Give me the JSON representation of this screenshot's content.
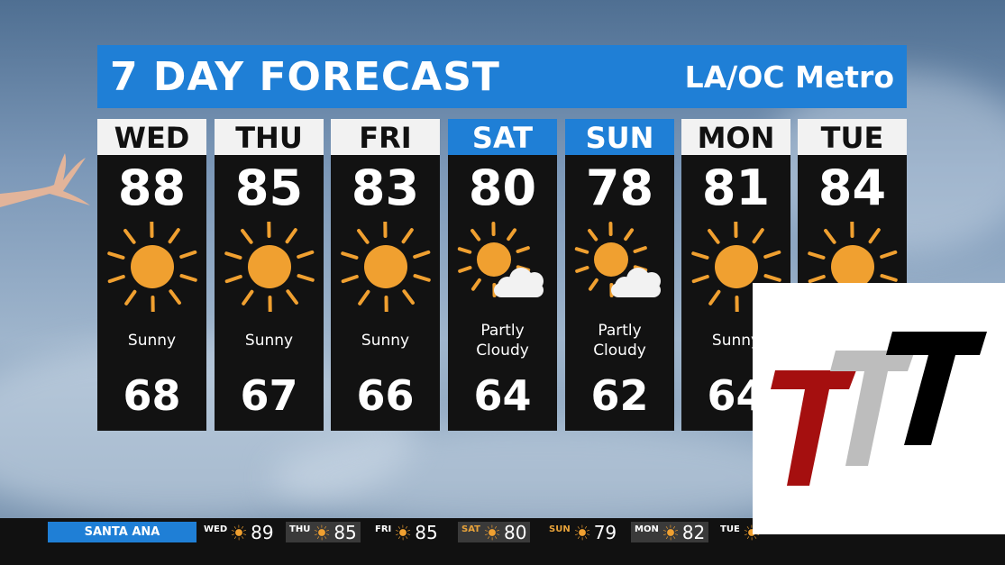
{
  "header": {
    "title": "7 DAY FORECAST",
    "region": "LA/OC Metro"
  },
  "days": [
    {
      "day": "WED",
      "high": "88",
      "low": "68",
      "condition": "Sunny",
      "icon": "sun-icon",
      "weekend": false
    },
    {
      "day": "THU",
      "high": "85",
      "low": "67",
      "condition": "Sunny",
      "icon": "sun-icon",
      "weekend": false
    },
    {
      "day": "FRI",
      "high": "83",
      "low": "66",
      "condition": "Sunny",
      "icon": "sun-icon",
      "weekend": false
    },
    {
      "day": "SAT",
      "high": "80",
      "low": "64",
      "condition": "Partly Cloudy",
      "icon": "partly-cloudy-icon",
      "weekend": true
    },
    {
      "day": "SUN",
      "high": "78",
      "low": "62",
      "condition": "Partly Cloudy",
      "icon": "partly-cloudy-icon",
      "weekend": true
    },
    {
      "day": "MON",
      "high": "81",
      "low": "64",
      "condition": "Sunny",
      "icon": "sun-icon",
      "weekend": false
    },
    {
      "day": "TUE",
      "high": "84",
      "low": "",
      "condition": "",
      "icon": "sun-icon",
      "weekend": false
    }
  ],
  "ticker": {
    "location": "SANTA ANA",
    "items": [
      {
        "day": "WED",
        "temp": "89"
      },
      {
        "day": "THU",
        "temp": "85"
      },
      {
        "day": "FRI",
        "temp": "85"
      },
      {
        "day": "SAT",
        "temp": "80"
      },
      {
        "day": "SUN",
        "temp": "79"
      },
      {
        "day": "MON",
        "temp": "82"
      },
      {
        "day": "TUE",
        "temp": ""
      }
    ]
  },
  "colors": {
    "accent": "#1f7fd6",
    "sun": "#f0a030",
    "panel": "#121212",
    "logo_red": "#a50f0f",
    "logo_gray": "#bdbdbd",
    "logo_black": "#000000"
  }
}
